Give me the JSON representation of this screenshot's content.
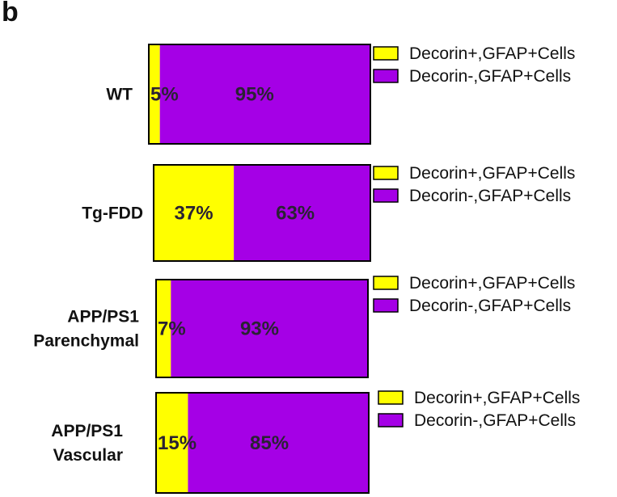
{
  "panel_label": "b",
  "colors": {
    "positive": "#FFFF00",
    "negative": "#A500E6",
    "outline": "#000000"
  },
  "chart_data": [
    {
      "type": "bar",
      "orientation": "horizontal-stacked",
      "category": [
        "WT"
      ],
      "series": [
        {
          "name": "Decorin+,GFAP+Cells",
          "values": [
            5
          ],
          "label": "5%"
        },
        {
          "name": "Decorin-,GFAP+Cells",
          "values": [
            95
          ],
          "label": "95%"
        }
      ],
      "xlim": [
        0,
        100
      ],
      "legend": "right"
    },
    {
      "type": "bar",
      "orientation": "horizontal-stacked",
      "category": [
        "Tg-FDD"
      ],
      "series": [
        {
          "name": "Decorin+,GFAP+Cells",
          "values": [
            37
          ],
          "label": "37%"
        },
        {
          "name": "Decorin-,GFAP+Cells",
          "values": [
            63
          ],
          "label": "63%"
        }
      ],
      "xlim": [
        0,
        100
      ],
      "legend": "right"
    },
    {
      "type": "bar",
      "orientation": "horizontal-stacked",
      "category": [
        "APP/PS1",
        "Parenchymal"
      ],
      "series": [
        {
          "name": "Decorin+,GFAP+Cells",
          "values": [
            7
          ],
          "label": "7%"
        },
        {
          "name": "Decorin-,GFAP+Cells",
          "values": [
            93
          ],
          "label": "93%"
        }
      ],
      "xlim": [
        0,
        100
      ],
      "legend": "right"
    },
    {
      "type": "bar",
      "orientation": "horizontal-stacked",
      "category": [
        "APP/PS1",
        "Vascular"
      ],
      "series": [
        {
          "name": "Decorin+,GFAP+Cells",
          "values": [
            15
          ],
          "label": "15%"
        },
        {
          "name": "Decorin-,GFAP+Cells",
          "values": [
            85
          ],
          "label": "85%"
        }
      ],
      "xlim": [
        0,
        100
      ],
      "legend": "right"
    }
  ]
}
